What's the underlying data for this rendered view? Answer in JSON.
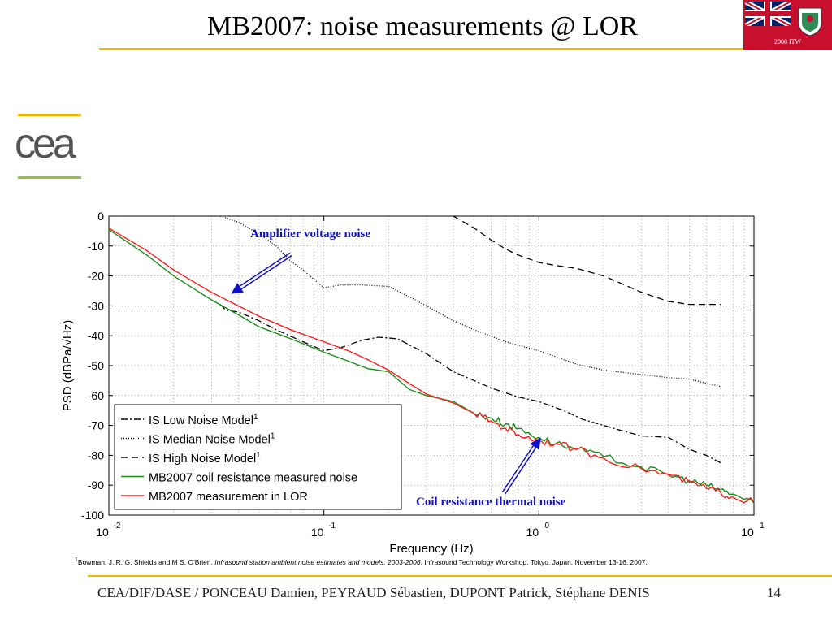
{
  "slide": {
    "title": "MB2007: noise measurements @ LOR",
    "badge_text": "2008 ITW",
    "logo_text": "cea",
    "footer": "CEA/DIF/DASE / PONCEAU Damien, PEYRAUD Sébastien, DUPONT Patrick, Stéphane DENIS",
    "page_number": "14",
    "footnote_mark": "1",
    "footnote_authors": "Bowman, J. R, G. Shields and M S. O'Brien, ",
    "footnote_title": "Infrasound station ambient noise estimates and models: 2003-2006",
    "footnote_rest": ", Infrasound Technology Workshop, Tokyo, Japan, November 13-16, 2007."
  },
  "colors": {
    "title_rule": "#f5b800",
    "badge": "#c8102e",
    "annotation": "#1010cc",
    "green_series": "#1a8f1a",
    "red_series": "#ff1a1a"
  },
  "chart_data": {
    "type": "line",
    "xlabel": "Frequency (Hz)",
    "ylabel": "PSD (dBPa/√Hz)",
    "x_scale": "log",
    "xlim": [
      0.01,
      10
    ],
    "ylim": [
      -100,
      0
    ],
    "xticks": [
      0.01,
      0.1,
      1,
      10
    ],
    "xtick_labels": [
      {
        "base": "10",
        "exp": "-2"
      },
      {
        "base": "10",
        "exp": "-1"
      },
      {
        "base": "10",
        "exp": "0"
      },
      {
        "base": "10",
        "exp": "1"
      }
    ],
    "yticks": [
      0,
      -10,
      -20,
      -30,
      -40,
      -50,
      -60,
      -70,
      -80,
      -90,
      -100
    ],
    "grid": true,
    "legend_position": "bottom-left",
    "series": [
      {
        "name": "IS Low Noise Model",
        "superscript": "1",
        "style": "dashdot",
        "color": "#000000",
        "x": [
          0.033,
          0.035,
          0.04,
          0.05,
          0.06,
          0.08,
          0.1,
          0.12,
          0.15,
          0.18,
          0.22,
          0.3,
          0.4,
          0.5,
          0.6,
          0.8,
          1.0,
          1.3,
          1.6,
          2.0,
          2.5,
          3.0,
          4.0,
          5.0,
          6.0,
          7.0
        ],
        "y": [
          -29.5,
          -31.5,
          -32,
          -35,
          -38,
          -42,
          -45,
          -44,
          -41.5,
          -40.5,
          -41,
          -46,
          -52,
          -55,
          -57.5,
          -60.5,
          -62,
          -65,
          -68,
          -70,
          -72,
          -73.5,
          -74,
          -78,
          -80,
          -82.5
        ]
      },
      {
        "name": "IS Median Noise Model",
        "superscript": "1",
        "style": "dotted",
        "color": "#000000",
        "x": [
          0.033,
          0.04,
          0.05,
          0.06,
          0.07,
          0.08,
          0.1,
          0.12,
          0.15,
          0.2,
          0.25,
          0.3,
          0.4,
          0.5,
          0.7,
          1.0,
          1.5,
          2.0,
          3.0,
          4.0,
          5.0,
          7.0
        ],
        "y": [
          0,
          -2,
          -6,
          -10,
          -15,
          -18,
          -24,
          -23,
          -23,
          -23.5,
          -27,
          -30,
          -35,
          -38,
          -42,
          -45,
          -49.5,
          -51.5,
          -53,
          -54,
          -54.5,
          -57
        ]
      },
      {
        "name": "IS High Noise Model",
        "superscript": "1",
        "style": "dashed",
        "color": "#000000",
        "x": [
          0.4,
          0.5,
          0.6,
          0.7,
          0.8,
          1.0,
          1.2,
          1.5,
          2.0,
          2.5,
          3.0,
          4.0,
          5.0,
          7.0
        ],
        "y": [
          0,
          -4,
          -8,
          -11,
          -13,
          -15.5,
          -16.5,
          -17.5,
          -20,
          -23,
          -25.5,
          -28.5,
          -29.5,
          -29.5
        ]
      },
      {
        "name": "MB2007 coil resistance measured noise",
        "style": "solid",
        "color": "#1a8f1a",
        "x": [
          0.01,
          0.015,
          0.02,
          0.03,
          0.04,
          0.05,
          0.07,
          0.1,
          0.13,
          0.16,
          0.2,
          0.25,
          0.3,
          0.4,
          0.5,
          0.6,
          0.7,
          0.8,
          1.0,
          1.2,
          1.5,
          2.0,
          3.0,
          4.0,
          5.0,
          6.0,
          7.0,
          8.0,
          10.0
        ],
        "y": [
          -4.5,
          -13,
          -20,
          -28,
          -33,
          -37,
          -41,
          -45.5,
          -48.5,
          -51,
          -52,
          -58,
          -60,
          -62,
          -66,
          -67.5,
          -69.5,
          -71,
          -74,
          -76,
          -78,
          -80.5,
          -84,
          -86.5,
          -88.5,
          -90,
          -91.5,
          -93,
          -96
        ]
      },
      {
        "name": "MB2007 measurement in LOR",
        "style": "solid",
        "color": "#ff1a1a",
        "x": [
          0.01,
          0.015,
          0.02,
          0.03,
          0.04,
          0.05,
          0.07,
          0.1,
          0.13,
          0.16,
          0.2,
          0.25,
          0.3,
          0.4,
          0.5,
          0.6,
          0.7,
          0.8,
          1.0,
          1.2,
          1.5,
          2.0,
          3.0,
          4.0,
          5.0,
          6.0,
          7.0,
          8.0,
          10.0
        ],
        "y": [
          -4,
          -11.5,
          -18,
          -25.5,
          -30,
          -33.5,
          -38,
          -42,
          -45,
          -48,
          -51.5,
          -56,
          -59.5,
          -62.5,
          -66,
          -68.5,
          -71,
          -73,
          -75,
          -76,
          -78,
          -81,
          -84.5,
          -86.5,
          -89,
          -91,
          -92.5,
          -94,
          -95.5
        ]
      }
    ],
    "annotations": [
      {
        "text": "Amplifier voltage noise",
        "arrow_to": {
          "x": 0.037,
          "y": -26
        }
      },
      {
        "text": "Coil resistance thermal noise",
        "arrow_to": {
          "x": 1.02,
          "y": -74
        }
      }
    ]
  }
}
